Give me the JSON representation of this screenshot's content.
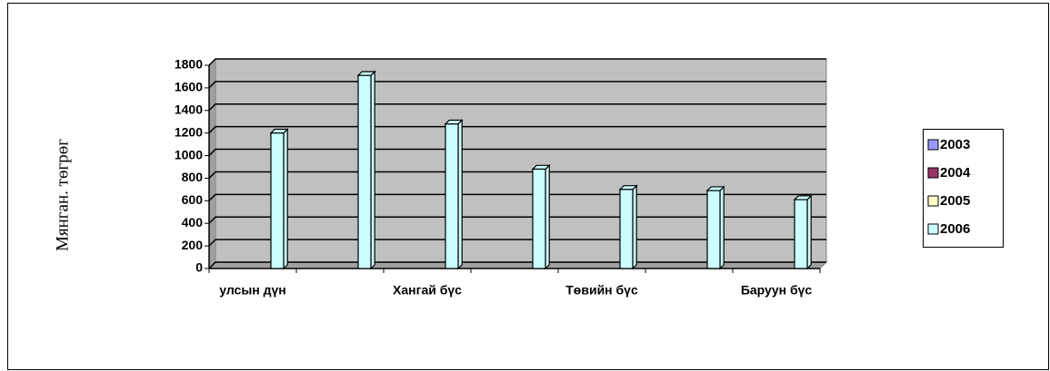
{
  "chart_data": {
    "type": "bar",
    "y_label": "Мянган. төгрөг",
    "categories": [
      "улсын дүн",
      null,
      "Хангай бүс",
      null,
      "Төвийн бүс",
      null,
      "Баруун бүс"
    ],
    "series": [
      {
        "name": "2003",
        "color": "#9999ff",
        "values": [
          null,
          null,
          null,
          null,
          null,
          null,
          null
        ]
      },
      {
        "name": "2004",
        "color": "#993366",
        "values": [
          null,
          null,
          null,
          null,
          null,
          null,
          null
        ]
      },
      {
        "name": "2005",
        "color": "#ffffcc",
        "values": [
          null,
          null,
          null,
          null,
          null,
          null,
          null
        ]
      },
      {
        "name": "2006",
        "color": "#ccffff",
        "values": [
          1200,
          1710,
          1280,
          880,
          700,
          690,
          610
        ]
      }
    ],
    "ylim": [
      0,
      1800
    ],
    "yticks": [
      0,
      200,
      400,
      600,
      800,
      1000,
      1200,
      1400,
      1600,
      1800
    ],
    "grid": true,
    "legend": "right"
  }
}
